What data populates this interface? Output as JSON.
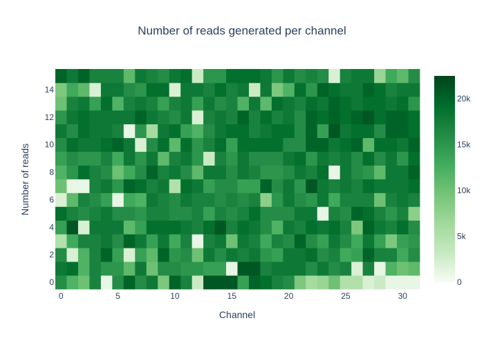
{
  "chart_data": {
    "type": "heatmap",
    "title": "Number of reads generated per channel",
    "xlabel": "Channel",
    "ylabel": "Number of reads",
    "x": [
      0,
      1,
      2,
      3,
      4,
      5,
      6,
      7,
      8,
      9,
      10,
      11,
      12,
      13,
      14,
      15,
      16,
      17,
      18,
      19,
      20,
      21,
      22,
      23,
      24,
      25,
      26,
      27,
      28,
      29,
      30,
      31
    ],
    "y": [
      0,
      1,
      2,
      3,
      4,
      5,
      6,
      7,
      8,
      9,
      10,
      11,
      12,
      13,
      14,
      15
    ],
    "xlim": [
      -0.5,
      31.5
    ],
    "ylim": [
      -0.5,
      15.5
    ],
    "x_ticks": [
      0,
      5,
      10,
      15,
      20,
      25,
      30
    ],
    "y_ticks": [
      0,
      2,
      4,
      6,
      8,
      10,
      12,
      14
    ],
    "colorscale": [
      "#f7fcf5",
      "#c7e9c0",
      "#a1d99b",
      "#74c476",
      "#41ab5d",
      "#238b45",
      "#006d2c",
      "#00441b"
    ],
    "zmin": 0,
    "zmax": 22500,
    "colorbar_ticks": [
      0,
      5000,
      10000,
      15000,
      20000
    ],
    "colorbar_ticktext": [
      "0",
      "5k",
      "10k",
      "15k",
      "20k"
    ],
    "grid": false,
    "z": [
      [
        16000,
        12000,
        10000,
        17000,
        1000,
        16000,
        20000,
        16000,
        18000,
        9000,
        20000,
        17000,
        3000,
        21000,
        21000,
        21000,
        14000,
        20000,
        19000,
        17000,
        16000,
        9000,
        6000,
        7000,
        10000,
        5000,
        5000,
        2000,
        3000,
        1000,
        1000,
        1000
      ],
      [
        18000,
        19000,
        12000,
        17000,
        15000,
        15000,
        11000,
        18000,
        10000,
        16000,
        16000,
        15000,
        15000,
        14000,
        14000,
        1000,
        21000,
        21000,
        17000,
        18000,
        18000,
        18000,
        16000,
        18000,
        16000,
        17000,
        2000,
        17000,
        1000,
        12000,
        10000,
        11000
      ],
      [
        16000,
        2000,
        12000,
        17000,
        20000,
        14000,
        2000,
        14000,
        11000,
        20000,
        15000,
        16000,
        10000,
        18000,
        16000,
        18000,
        17000,
        18000,
        15000,
        14000,
        18000,
        18000,
        19000,
        16000,
        17000,
        13000,
        14000,
        20000,
        17000,
        17000,
        13000,
        16000
      ],
      [
        5000,
        13000,
        17000,
        17000,
        18000,
        16000,
        20000,
        18000,
        14000,
        18000,
        13000,
        17000,
        1000,
        17000,
        18000,
        10000,
        18000,
        17000,
        13000,
        17000,
        16000,
        20000,
        16000,
        14000,
        18000,
        16000,
        13000,
        18000,
        14000,
        9000,
        14000,
        15000
      ],
      [
        14000,
        21000,
        2000,
        18000,
        18000,
        18000,
        11000,
        14000,
        19000,
        19000,
        19000,
        18000,
        17000,
        19000,
        21000,
        17000,
        19000,
        18000,
        16000,
        12000,
        18000,
        17000,
        19000,
        18000,
        19000,
        17000,
        9000,
        20000,
        18000,
        17000,
        19000,
        16000
      ],
      [
        19000,
        17000,
        16000,
        17000,
        18000,
        16000,
        16000,
        15000,
        17000,
        17000,
        16000,
        16000,
        17000,
        14000,
        17000,
        16000,
        17000,
        19000,
        16000,
        16000,
        16000,
        18000,
        18000,
        1000,
        17000,
        16000,
        20000,
        19000,
        17000,
        15000,
        17000,
        8000
      ],
      [
        2000,
        11000,
        17000,
        16000,
        14000,
        1000,
        13000,
        12000,
        18000,
        17000,
        16000,
        18000,
        17000,
        17000,
        16000,
        17000,
        16000,
        17000,
        8000,
        15000,
        18000,
        16000,
        15000,
        18000,
        13000,
        17000,
        17000,
        17000,
        10000,
        17000,
        18000,
        17000
      ],
      [
        10000,
        1000,
        1000,
        17000,
        18000,
        15000,
        20000,
        19000,
        17000,
        18000,
        5000,
        19000,
        18000,
        14000,
        16000,
        16000,
        14000,
        14000,
        20000,
        16000,
        18000,
        15000,
        21000,
        18000,
        17000,
        18000,
        17000,
        19000,
        18000,
        18000,
        18000,
        19000
      ],
      [
        12000,
        15000,
        19000,
        17000,
        16000,
        10000,
        13000,
        16000,
        20000,
        17000,
        18000,
        16000,
        11000,
        18000,
        18000,
        16000,
        18000,
        17000,
        15000,
        15000,
        16000,
        18000,
        17000,
        19000,
        1000,
        18000,
        16000,
        15000,
        11000,
        18000,
        18000,
        20000
      ],
      [
        14000,
        16000,
        15000,
        15000,
        17000,
        13000,
        18000,
        15000,
        18000,
        11000,
        17000,
        18000,
        15000,
        3000,
        17000,
        15000,
        18000,
        16000,
        16000,
        16000,
        18000,
        19000,
        15000,
        18000,
        17000,
        18000,
        16000,
        19000,
        16000,
        18000,
        15000,
        19000
      ],
      [
        16000,
        19000,
        18000,
        18000,
        19000,
        20000,
        18000,
        2000,
        16000,
        19000,
        11000,
        19000,
        15000,
        17000,
        19000,
        14000,
        19000,
        19000,
        19000,
        19000,
        16000,
        16000,
        20000,
        20000,
        18000,
        19000,
        20000,
        11000,
        19000,
        19000,
        18000,
        20000
      ],
      [
        18000,
        16000,
        19000,
        18000,
        18000,
        17000,
        1000,
        15000,
        6000,
        18000,
        19000,
        14000,
        12000,
        16000,
        18000,
        19000,
        19000,
        17000,
        18000,
        19000,
        19000,
        16000,
        20000,
        14000,
        21000,
        18000,
        19000,
        19000,
        16000,
        20000,
        20000,
        19000
      ],
      [
        15000,
        18000,
        19000,
        18000,
        18000,
        18000,
        18000,
        20000,
        18000,
        17000,
        16000,
        18000,
        2000,
        17000,
        18000,
        17000,
        20000,
        17000,
        19000,
        17000,
        18000,
        16000,
        20000,
        19000,
        20000,
        19000,
        20000,
        21000,
        19000,
        20000,
        20000,
        19000
      ],
      [
        10000,
        17000,
        18000,
        14000,
        19000,
        12000,
        17000,
        18000,
        17000,
        14000,
        17000,
        18000,
        14000,
        18000,
        16000,
        17000,
        12000,
        18000,
        11000,
        19000,
        18000,
        17000,
        19000,
        18000,
        20000,
        19000,
        18000,
        19000,
        19000,
        18000,
        19000,
        15000
      ],
      [
        9000,
        13000,
        11000,
        2000,
        18000,
        18000,
        16000,
        15000,
        19000,
        19000,
        2000,
        18000,
        18000,
        17000,
        19000,
        17000,
        18000,
        3000,
        18000,
        9000,
        12000,
        19000,
        15000,
        20000,
        19000,
        18000,
        18000,
        20000,
        19000,
        17000,
        18000,
        18000
      ],
      [
        20000,
        18000,
        20000,
        17000,
        17000,
        17000,
        11000,
        18000,
        17000,
        16000,
        18000,
        19000,
        3000,
        15000,
        15000,
        19000,
        19000,
        19000,
        18000,
        15000,
        18000,
        16000,
        17000,
        16000,
        2000,
        17000,
        18000,
        18000,
        7000,
        13000,
        11000,
        16000
      ]
    ]
  }
}
